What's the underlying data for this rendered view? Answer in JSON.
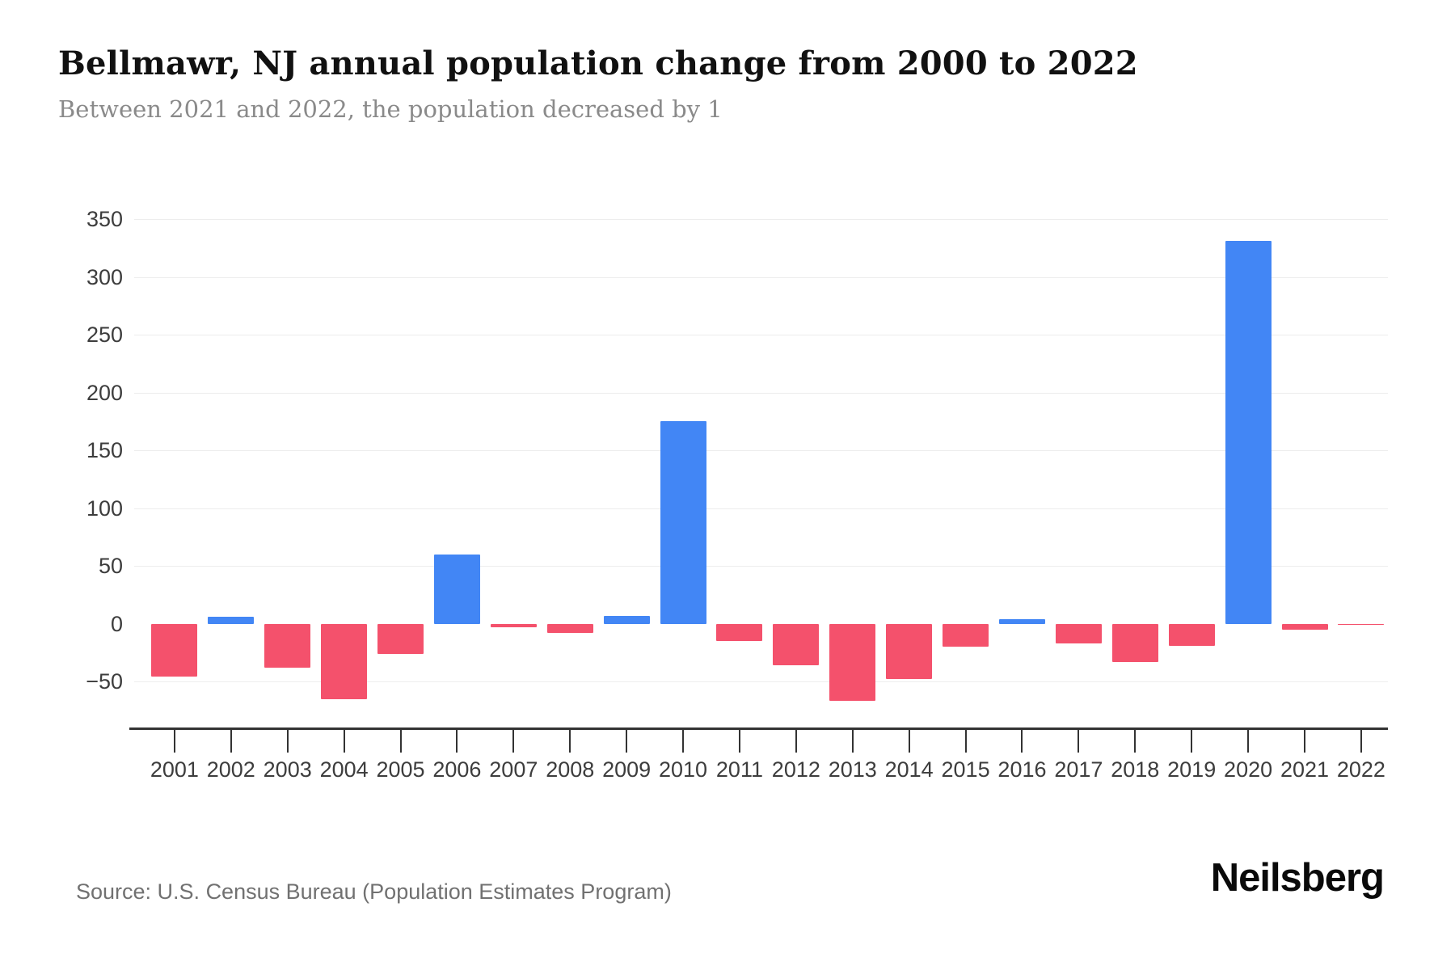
{
  "header": {
    "title": "Bellmawr, NJ annual population change from 2000 to 2022",
    "subtitle": "Between 2021 and 2022, the population decreased by 1"
  },
  "chart_data": {
    "type": "bar",
    "title": "Bellmawr, NJ annual population change from 2000 to 2022",
    "subtitle": "Between 2021 and 2022, the population decreased by 1",
    "xlabel": "",
    "ylabel": "",
    "categories": [
      "2001",
      "2002",
      "2003",
      "2004",
      "2005",
      "2006",
      "2007",
      "2008",
      "2009",
      "2010",
      "2011",
      "2012",
      "2013",
      "2014",
      "2015",
      "2016",
      "2017",
      "2018",
      "2019",
      "2020",
      "2021",
      "2022"
    ],
    "values": [
      -46,
      6,
      -38,
      -65,
      -26,
      60,
      -3,
      -8,
      7,
      175,
      -15,
      -36,
      -67,
      -48,
      -20,
      4,
      -17,
      -33,
      -19,
      331,
      -5,
      -1
    ],
    "yticks": [
      350,
      300,
      250,
      200,
      150,
      100,
      50,
      0,
      -50
    ],
    "ylim": [
      -90,
      378
    ],
    "grid": "horizontal light gray, no line at 0",
    "legend": "none",
    "positive_color": "#4286F5",
    "negative_color": "#F4516C"
  },
  "footer": {
    "source": "Source: U.S. Census Bureau (Population Estimates Program)",
    "brand": "Neilsberg"
  }
}
